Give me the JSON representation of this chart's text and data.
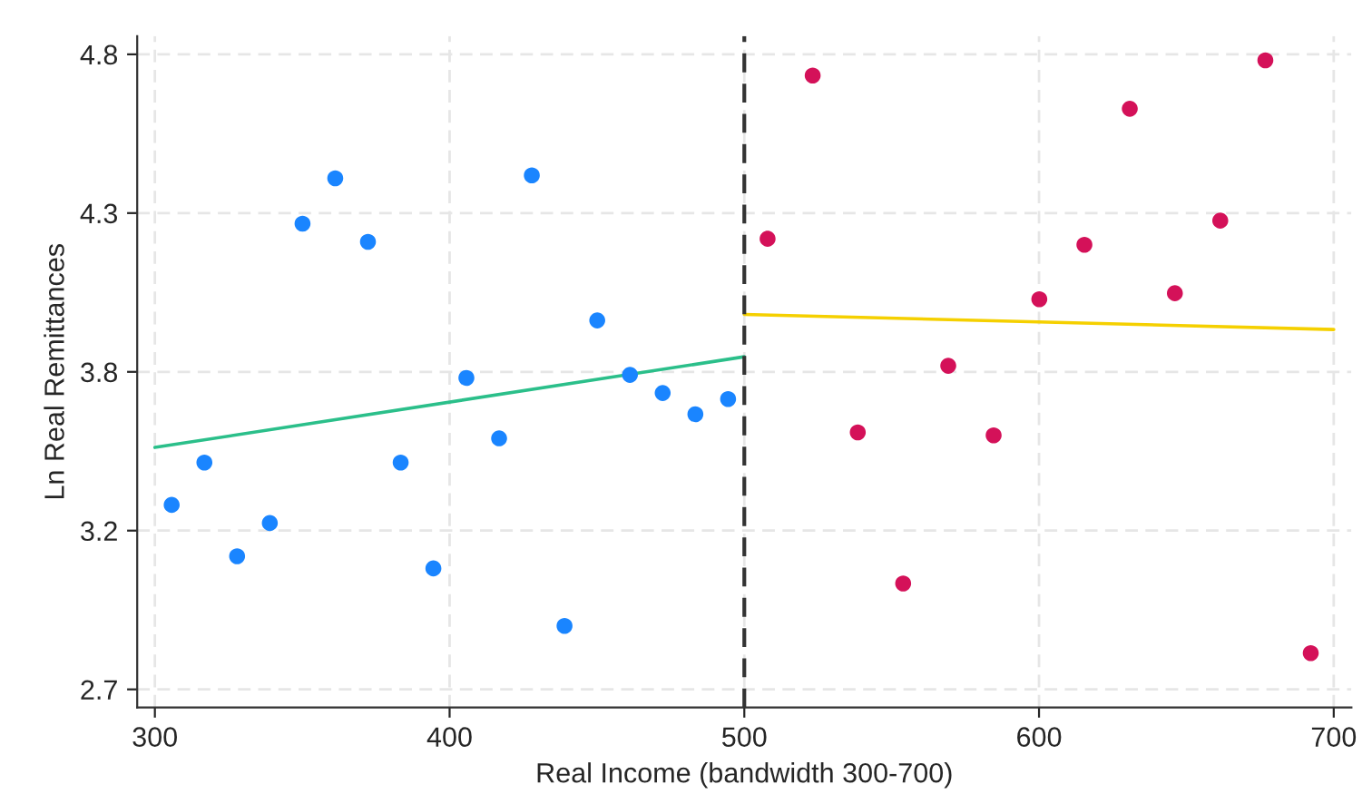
{
  "chart_data": {
    "type": "scatter",
    "xlabel": "Real Income (bandwidth 300-700)",
    "ylabel": "Ln Real Remittances",
    "xlim": [
      294,
      706
    ],
    "xticks": [
      300,
      400,
      500,
      600,
      700
    ],
    "ylim": [
      2.64,
      4.86
    ],
    "yticks": [
      {
        "value": 2.7,
        "label": "2.7"
      },
      {
        "value": 3.225,
        "label": "3.2"
      },
      {
        "value": 3.75,
        "label": "3.8"
      },
      {
        "value": 4.275,
        "label": "4.3"
      },
      {
        "value": 4.8,
        "label": "4.8"
      }
    ],
    "grid": true,
    "legend": false,
    "ref_lines": [
      {
        "axis": "x",
        "value": 500,
        "color": "#333333",
        "line_style": "dashed"
      }
    ],
    "series": [
      {
        "marker": "circle",
        "color": "#1a85ff",
        "x": [
          305.7,
          316.8,
          327.9,
          339.0,
          350.1,
          361.2,
          372.3,
          383.4,
          394.5,
          405.7,
          416.8,
          427.9,
          439.0,
          450.1,
          461.2,
          472.3,
          483.4,
          494.5
        ],
        "values": [
          3.31,
          3.45,
          3.14,
          3.25,
          4.24,
          4.39,
          4.18,
          3.45,
          3.1,
          3.73,
          3.53,
          4.4,
          2.91,
          3.92,
          3.74,
          3.68,
          3.61,
          3.66
        ]
      },
      {
        "marker": "circle",
        "color": "#d41159",
        "x": [
          507.9,
          523.2,
          538.5,
          553.9,
          569.2,
          584.6,
          600.1,
          615.4,
          630.8,
          646.1,
          661.5,
          676.8,
          692.2
        ],
        "values": [
          4.19,
          4.73,
          3.55,
          3.05,
          3.77,
          3.54,
          3.99,
          4.17,
          4.62,
          4.01,
          4.25,
          4.78,
          2.82
        ]
      },
      {
        "type": "line",
        "color": "#2bbf8a",
        "x": [
          300,
          500
        ],
        "values": [
          3.5,
          3.8
        ]
      },
      {
        "type": "line",
        "color": "#f5d000",
        "x": [
          500,
          700
        ],
        "values": [
          3.94,
          3.89
        ]
      }
    ]
  }
}
